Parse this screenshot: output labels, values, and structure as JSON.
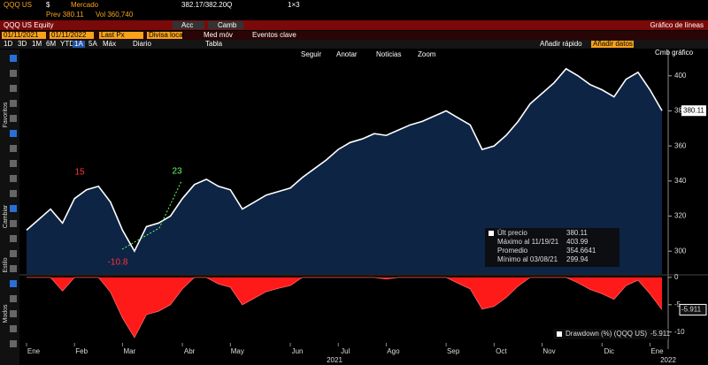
{
  "top_bar": {
    "ticker": "QQQ US",
    "currency": "$",
    "market": "Mercado",
    "prev": "Prev 380.11",
    "vol": "Vol 360,740",
    "quote": "382.17/382.20Q",
    "size": "1×3"
  },
  "title_bar": {
    "security": "QQQ US Equity",
    "actions": "Acc",
    "change": "Camb",
    "chart_type": "Gráfico de líneas"
  },
  "settings_bar": {
    "start": "01/11/2021",
    "end": "01/11/2022",
    "field": "Last Px",
    "local_currency": "Divisa local",
    "moving_avg": "Med móv",
    "events": "Eventos clave"
  },
  "range_bar": {
    "ranges": [
      "1D",
      "3D",
      "1M",
      "6M",
      "YTD",
      "1A",
      "5A",
      "Máx"
    ],
    "period": "Diario",
    "table": "Tabla",
    "quick_add": "Añadir rápido",
    "add_data": "Añadir datos",
    "change_chart": "Cmb gráfico"
  },
  "chart_tools": [
    "Seguir",
    "Anotar",
    "Noticias",
    "Zoom"
  ],
  "sidebar": [
    "Favoritos",
    "Cambiar",
    "Estilo",
    "Modos"
  ],
  "chart_data": [
    {
      "type": "line",
      "categories": [
        "Ene",
        null,
        null,
        null,
        "Feb",
        null,
        null,
        null,
        "Mar",
        null,
        null,
        null,
        null,
        "Abr",
        null,
        null,
        null,
        "May",
        null,
        null,
        null,
        null,
        "Jun",
        null,
        null,
        null,
        "Jul",
        null,
        null,
        null,
        "Ago",
        null,
        null,
        null,
        null,
        "Sep",
        null,
        null,
        null,
        "Oct",
        null,
        null,
        null,
        "Nov",
        null,
        null,
        null,
        null,
        "Dic",
        null,
        null,
        null,
        "Ene",
        null
      ],
      "series": [
        {
          "name": "Últ precio",
          "color": "#ffffff",
          "values": [
            312,
            318,
            324,
            316,
            330,
            335,
            337,
            328,
            312,
            300,
            314,
            316,
            320,
            330,
            338,
            341,
            337,
            335,
            324,
            328,
            332,
            334,
            336,
            342,
            347,
            352,
            358,
            362,
            364,
            367,
            366,
            369,
            372,
            374,
            377,
            380,
            376,
            372,
            358,
            360,
            366,
            374,
            384,
            390,
            396,
            404,
            400,
            395,
            392,
            388,
            398,
            402,
            392,
            380.11
          ]
        }
      ],
      "ylim": [
        287,
        415
      ],
      "yticks": [
        300,
        320,
        340,
        360,
        380,
        400
      ],
      "last_label": "380.11",
      "annotations": [
        "15",
        "23",
        "-10.8"
      ],
      "stats": [
        {
          "label": "Máximo al 11/19/21",
          "value": "403.99"
        },
        {
          "label": "Promedio",
          "value": "354.6641"
        },
        {
          "label": "Mínimo al 03/08/21",
          "value": "299.94"
        }
      ],
      "years": [
        "2021",
        "2022"
      ]
    },
    {
      "type": "area",
      "series": [
        {
          "name": "Drawdown (%) (QQQ US)",
          "color": "#ff1a1a",
          "values": [
            0,
            0,
            0,
            -2.5,
            0,
            0,
            0,
            -2.7,
            -7.4,
            -11,
            -6.8,
            -6.2,
            -5,
            -2.1,
            0,
            0,
            -1.2,
            -1.8,
            -5,
            -3.8,
            -2.6,
            -2,
            -1.5,
            0,
            0,
            0,
            0,
            0,
            0,
            0,
            -0.3,
            0,
            0,
            0,
            0,
            0,
            -1.1,
            -2.1,
            -5.8,
            -5.3,
            -3.7,
            -1.6,
            0,
            0,
            0,
            0,
            -1,
            -2.2,
            -3,
            -4,
            -1.5,
            -0.5,
            -3,
            -5.911
          ]
        }
      ],
      "ylim": [
        -11.5,
        0.3
      ],
      "yticks": [
        0,
        -5,
        -10
      ],
      "last_label": "-5.911"
    }
  ]
}
